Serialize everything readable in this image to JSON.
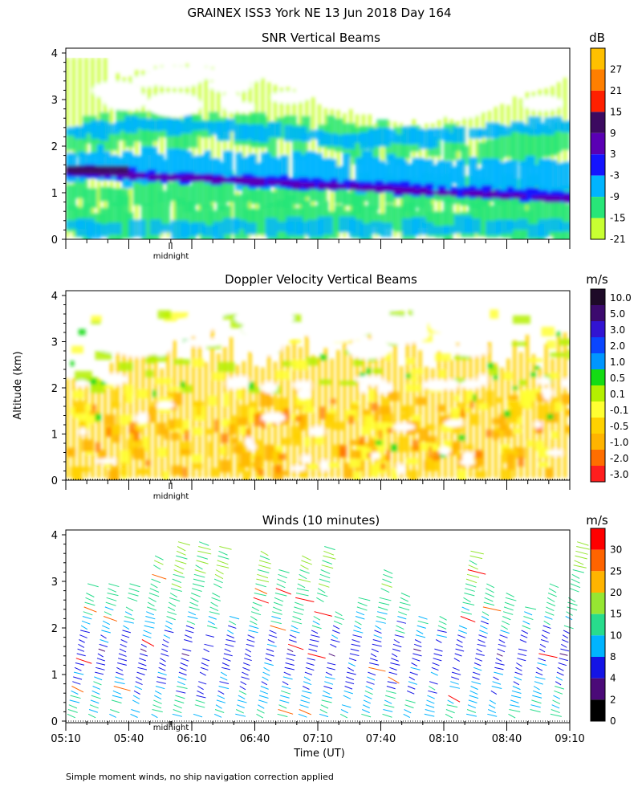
{
  "page_title": "GRAINEX ISS3 York NE  13 Jun 2018 Day 164",
  "y_axis_label": "Altitude (km)",
  "x_axis_label": "Time (UT)",
  "midnight_label": "midnight",
  "footnote": "Simple moment winds, no ship navigation correction applied",
  "chart_data": [
    {
      "type": "heatmap",
      "title": "SNR Vertical Beams",
      "units": "dB",
      "ylabel": "Altitude (km)",
      "ylim": [
        0,
        4
      ],
      "yticks": [
        "0",
        "1",
        "2",
        "3",
        "4"
      ],
      "xlim_minutes_utc": [
        310,
        550
      ],
      "colorbar_labels": [
        "27",
        "21",
        "15",
        "9",
        "3",
        "-3",
        "-9",
        "-15",
        "-21"
      ],
      "colorbar_colors": [
        "#ffc000",
        "#ff7f00",
        "#ff2000",
        "#3c0a60",
        "#5a00b4",
        "#1414ff",
        "#00b4ff",
        "#28e678",
        "#c8ff32"
      ],
      "features": [
        {
          "name": "low-level clutter layer",
          "alt_km": [
            0.1,
            0.9
          ],
          "snr_db": -12
        },
        {
          "name": "strong descending layer",
          "alt_km_start": 1.45,
          "alt_km_end": 0.85,
          "snr_db": 10
        },
        {
          "name": "mid-level layer",
          "alt_km": [
            1.9,
            2.5
          ],
          "snr_db": -8
        },
        {
          "name": "upper sparse echoes",
          "alt_km": [
            2.8,
            3.8
          ],
          "snr_db": -18
        }
      ]
    },
    {
      "type": "heatmap",
      "title": "Doppler Velocity Vertical Beams",
      "units": "m/s",
      "ylabel": "Altitude (km)",
      "ylim": [
        0,
        4
      ],
      "yticks": [
        "0",
        "1",
        "2",
        "3",
        "4"
      ],
      "xlim_minutes_utc": [
        310,
        550
      ],
      "colorbar_labels": [
        "10.0",
        "5.0",
        "3.0",
        "2.0",
        "1.0",
        "0.5",
        "0.1",
        "-0.1",
        "-0.5",
        "-1.0",
        "-2.0",
        "-3.0"
      ],
      "colorbar_colors": [
        "#1e0a28",
        "#3c0a6e",
        "#3214d2",
        "#0a46ff",
        "#0096ff",
        "#14dc14",
        "#b4f000",
        "#ffff32",
        "#ffd200",
        "#ffb400",
        "#ff6e00",
        "#ff1e1e"
      ],
      "features": [
        {
          "name": "boundary layer weak sink",
          "alt_km": [
            0.1,
            1.9
          ],
          "velocity_ms": -0.5
        },
        {
          "name": "upper layer near zero",
          "alt_km": [
            2.2,
            3.8
          ],
          "velocity_ms": -0.1
        }
      ]
    },
    {
      "type": "wind_barbs",
      "title": "Winds (10 minutes)",
      "units": "m/s",
      "ylabel": "Altitude (km)",
      "xlabel": "Time (UT)",
      "ylim": [
        0,
        4
      ],
      "yticks": [
        "0",
        "1",
        "2",
        "3",
        "4"
      ],
      "xlim_minutes_utc": [
        310,
        550
      ],
      "xticks": [
        "05:10",
        "05:40",
        "06:10",
        "06:40",
        "07:10",
        "07:40",
        "08:10",
        "08:40",
        "09:10"
      ],
      "colorbar_labels": [
        "30",
        "25",
        "20",
        "15",
        "10",
        "8",
        "4",
        "2",
        "0"
      ],
      "colorbar_colors": [
        "#ff0000",
        "#ff6400",
        "#ffb400",
        "#96e632",
        "#28dc8c",
        "#00b4ff",
        "#1414e6",
        "#4b0a78",
        "#000000"
      ],
      "profile_interval_minutes": 10,
      "typical_speed_profile_ms": [
        {
          "alt_km": 0.5,
          "speed": 10
        },
        {
          "alt_km": 1.5,
          "speed": 5
        },
        {
          "alt_km": 2.5,
          "speed": 12
        },
        {
          "alt_km": 3.5,
          "speed": 16
        }
      ]
    }
  ]
}
